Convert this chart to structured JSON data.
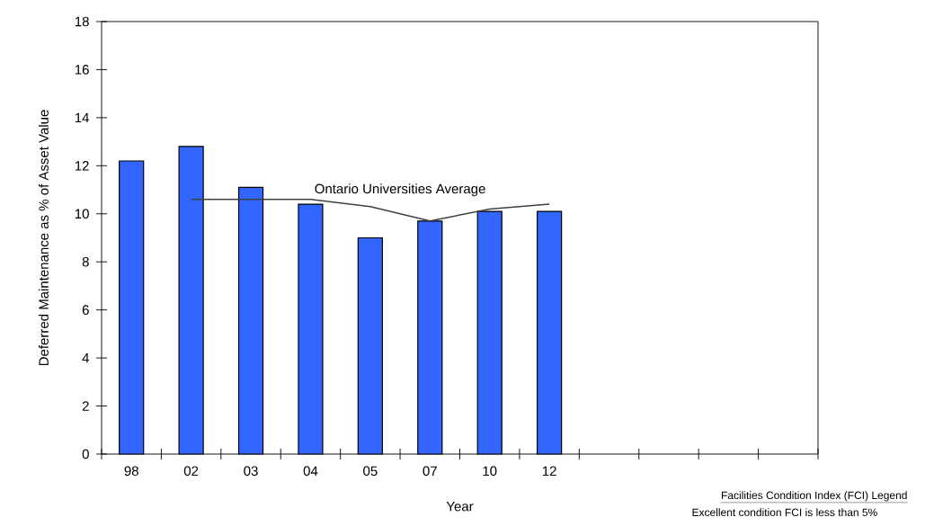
{
  "chart_data": {
    "type": "bar",
    "xlabel": "Year",
    "ylabel": "Deferred Maintenance as % of Asset Value",
    "categories": [
      "98",
      "02",
      "03",
      "04",
      "05",
      "07",
      "10",
      "12",
      null,
      null,
      null,
      null
    ],
    "series": [
      {
        "color": "#3366ff",
        "values": [
          12.2,
          12.8,
          11.1,
          10.4,
          9.0,
          9.7,
          10.1,
          10.1,
          null,
          null,
          null,
          null
        ]
      },
      {
        "name": "Ontario Universities Average",
        "type": "line",
        "color": "#404040",
        "values": [
          null,
          10.6,
          10.6,
          10.6,
          10.3,
          9.7,
          10.2,
          10.4,
          null,
          null,
          null,
          null
        ]
      }
    ],
    "ylim": [
      0,
      18
    ],
    "yticks": [
      0,
      2,
      4,
      6,
      8,
      10,
      12,
      14,
      16,
      18
    ],
    "grid": false,
    "annotations": [
      "Facilities Condition Index (FCI) Legend",
      "Excellent condition  FCI is less than 5%"
    ]
  }
}
